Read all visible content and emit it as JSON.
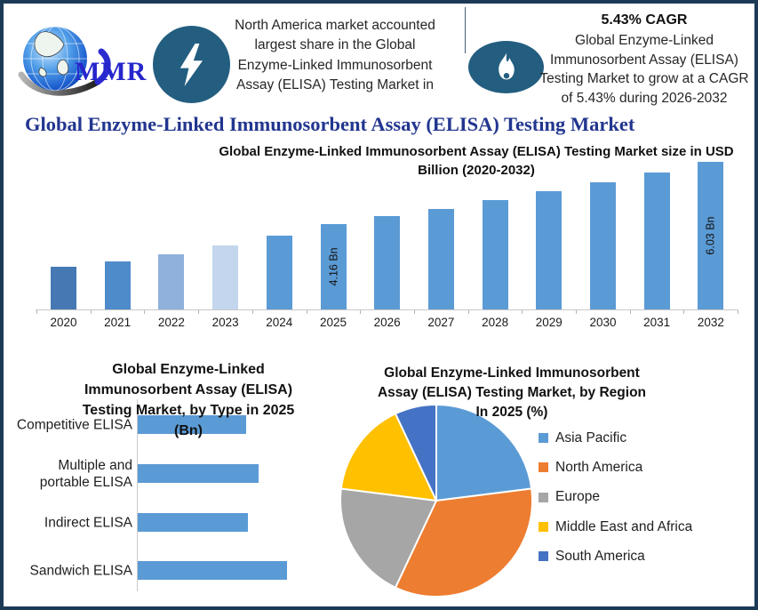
{
  "colors": {
    "border": "#1c3a55",
    "badge_blue": "#235e80",
    "title_blue": "#22368f",
    "logo_text_blue": "#2626cc",
    "axis_gray": "#c9c9c9",
    "bar_blue": "#5b9bd5"
  },
  "header": {
    "logo_text": "MMR",
    "headline_lines": [
      "North America market accounted",
      "largest share in the Global",
      "Enzyme-Linked Immunosorbent",
      "Assay (ELISA) Testing Market in"
    ],
    "cagr_heading": "5.43% CAGR",
    "cagr_lines": [
      "Global Enzyme-Linked",
      "Immunosorbent Assay (ELISA)",
      "Testing Market to grow at a CAGR",
      "of 5.43% during 2026-2032"
    ]
  },
  "page_title": "Global Enzyme-Linked Immunosorbent Assay (ELISA) Testing Market",
  "chart_data": [
    {
      "id": "market-size-bar",
      "type": "bar",
      "title": "Global Enzyme-Linked Immunosorbent Assay (ELISA) Testing Market size in USD Billion (2020-2032)",
      "title_lines": [
        "Global Enzyme-Linked Immunosorbent Assay (ELISA) Testing Market size in USD",
        "Billion (2020-2032)"
      ],
      "categories": [
        "2020",
        "2021",
        "2022",
        "2023",
        "2024",
        "2025",
        "2026",
        "2027",
        "2028",
        "2029",
        "2030",
        "2031",
        "2032"
      ],
      "values": [
        2.85,
        3.02,
        3.22,
        3.5,
        3.8,
        4.16,
        4.39,
        4.62,
        4.88,
        5.14,
        5.42,
        5.72,
        6.03
      ],
      "unit": "USD Bn",
      "ylabel": "",
      "xlabel": "",
      "ylim": [
        1.55,
        6.5
      ],
      "grid": false,
      "bar_colors": [
        "#4679b4",
        "#4e8bca",
        "#8fb1dc",
        "#c3d6ee",
        "#5b9bd5",
        "#5b9bd5",
        "#5b9bd5",
        "#5b9bd5",
        "#5b9bd5",
        "#5b9bd5",
        "#5b9bd5",
        "#5b9bd5",
        "#5b9bd5"
      ],
      "data_labels": [
        {
          "category": "2025",
          "text": "4.16 Bn"
        },
        {
          "category": "2032",
          "text": "6.03 Bn"
        }
      ]
    },
    {
      "id": "type-bar",
      "type": "bar",
      "orientation": "horizontal",
      "title": "Global Enzyme-Linked Immunosorbent Assay (ELISA) Testing Market, by Type in 2025 (Bn)",
      "title_lines": [
        "Global Enzyme-Linked",
        "Immunosorbent Assay (ELISA)",
        "Testing Market, by Type  in 2025",
        "(Bn)"
      ],
      "categories": [
        "Competitive ELISA",
        "Multiple and portable ELISA",
        "Indirect ELISA",
        "Sandwich ELISA"
      ],
      "values": [
        0.92,
        1.03,
        0.94,
        1.27
      ],
      "unit": "Bn",
      "xlim": [
        0,
        1.27
      ],
      "grid": false,
      "bar_color": "#5b9bd5"
    },
    {
      "id": "region-pie",
      "type": "pie",
      "title": "Global Enzyme-Linked Immunosorbent Assay (ELISA) Testing Market, by Region In 2025 (%)",
      "title_lines": [
        "Global Enzyme-Linked Immunosorbent",
        "Assay (ELISA) Testing Market, by Region",
        "In 2025 (%)"
      ],
      "labels": [
        "Asia Pacific",
        "North America",
        "Europe",
        "Middle East and Africa",
        "South America"
      ],
      "values": [
        23,
        34,
        20,
        16,
        7
      ],
      "unit": "%",
      "slice_colors": [
        "#5b9bd5",
        "#ed7d31",
        "#a6a6a6",
        "#ffc000",
        "#4472c4"
      ],
      "legend_position": "right"
    }
  ]
}
